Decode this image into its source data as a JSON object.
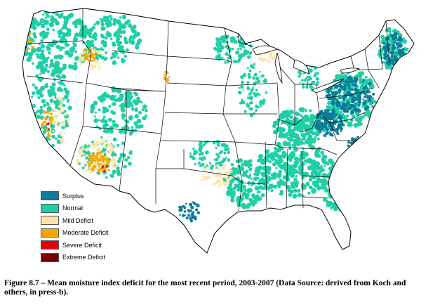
{
  "legend": {
    "items": [
      {
        "label": "Surplus",
        "color": "#0f7a99"
      },
      {
        "label": "Normal",
        "color": "#1fcfa6"
      },
      {
        "label": "Mild Deficit",
        "color": "#fde5a8"
      },
      {
        "label": "Moderate Deficit",
        "color": "#f7a800"
      },
      {
        "label": "Severe Deficit",
        "color": "#e60000"
      },
      {
        "label": "Extreme Deficit",
        "color": "#7a0000"
      }
    ]
  },
  "caption": "Figure 8.7 – Mean moisture index deficit for the most recent period, 2003-2007 (Data Source: derived from Koch and others, in press-b).",
  "map": {
    "land_color": "#ffffff",
    "boundary_color": "#000000",
    "background_color": "#ffffff"
  }
}
